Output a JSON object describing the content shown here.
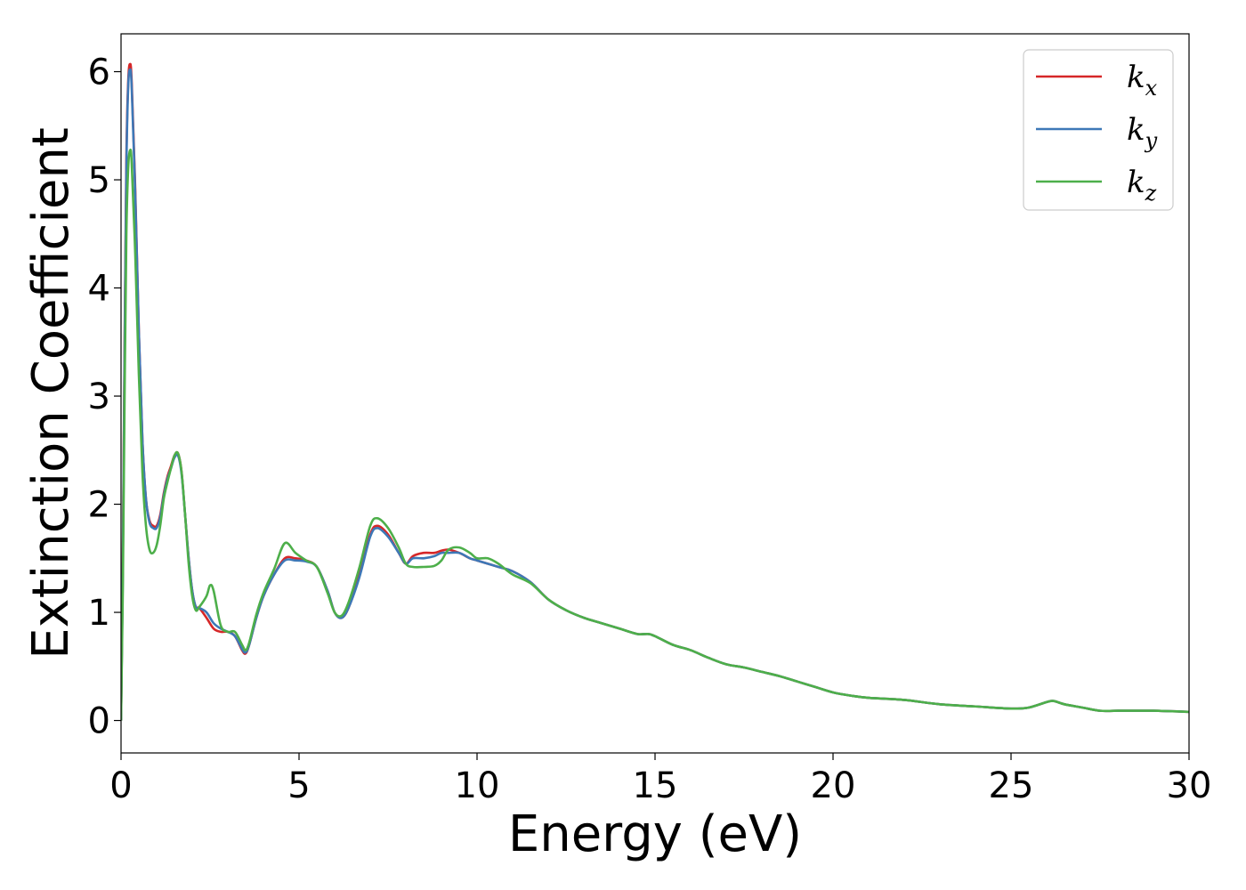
{
  "chart_data": {
    "type": "line",
    "xlabel": "Energy (eV)",
    "ylabel": "Extinction Coefficient",
    "xlim": [
      0,
      30
    ],
    "ylim": [
      -0.3,
      6.35
    ],
    "x_ticks": [
      "0",
      "5",
      "10",
      "15",
      "20",
      "25",
      "30"
    ],
    "y_ticks": [
      "0",
      "1",
      "2",
      "3",
      "4",
      "5",
      "6"
    ],
    "grid": false,
    "legend_placement": "top-right",
    "series": [
      {
        "name": "k_x",
        "legend_main": "k",
        "legend_sub": "x",
        "color": "#d62728",
        "x": [
          0,
          0.05,
          0.1,
          0.15,
          0.2,
          0.25,
          0.3,
          0.4,
          0.5,
          0.6,
          0.7,
          0.8,
          0.9,
          1.0,
          1.1,
          1.2,
          1.3,
          1.4,
          1.5,
          1.6,
          1.7,
          1.8,
          1.9,
          2.0,
          2.1,
          2.2,
          2.4,
          2.6,
          2.8,
          3.0,
          3.2,
          3.4,
          3.5,
          3.6,
          3.8,
          4.0,
          4.3,
          4.6,
          4.9,
          5.2,
          5.5,
          5.8,
          6.0,
          6.2,
          6.4,
          6.7,
          7.0,
          7.2,
          7.5,
          7.8,
          8.0,
          8.2,
          8.5,
          8.8,
          9.0,
          9.2,
          9.5,
          9.8,
          10.0,
          10.3,
          10.6,
          11.0,
          11.5,
          12.0,
          12.5,
          13.0,
          13.5,
          14.0,
          14.5,
          14.8,
          15.0,
          15.5,
          16.0,
          16.5,
          17.0,
          17.5,
          18.0,
          18.5,
          19.0,
          19.5,
          20.0,
          20.5,
          21.0,
          22.0,
          23.0,
          24.0,
          25.0,
          25.5,
          26.0,
          26.2,
          26.5,
          27.0,
          27.5,
          28.0,
          29.0,
          30.0
        ],
        "y": [
          0.0,
          1.5,
          3.5,
          5.2,
          5.9,
          6.07,
          5.9,
          4.9,
          3.6,
          2.6,
          2.05,
          1.85,
          1.8,
          1.8,
          1.9,
          2.1,
          2.25,
          2.35,
          2.45,
          2.47,
          2.3,
          1.9,
          1.5,
          1.2,
          1.05,
          1.04,
          0.95,
          0.85,
          0.82,
          0.82,
          0.78,
          0.65,
          0.62,
          0.7,
          0.95,
          1.15,
          1.35,
          1.5,
          1.5,
          1.48,
          1.42,
          1.2,
          1.0,
          0.95,
          1.05,
          1.35,
          1.72,
          1.8,
          1.72,
          1.55,
          1.45,
          1.52,
          1.55,
          1.55,
          1.57,
          1.58,
          1.55,
          1.5,
          1.48,
          1.45,
          1.42,
          1.38,
          1.28,
          1.12,
          1.02,
          0.95,
          0.9,
          0.85,
          0.8,
          0.8,
          0.78,
          0.7,
          0.65,
          0.58,
          0.52,
          0.49,
          0.45,
          0.41,
          0.36,
          0.31,
          0.26,
          0.23,
          0.21,
          0.19,
          0.15,
          0.13,
          0.11,
          0.12,
          0.17,
          0.18,
          0.15,
          0.12,
          0.09,
          0.09,
          0.09,
          0.08
        ]
      },
      {
        "name": "k_y",
        "legend_main": "k",
        "legend_sub": "y",
        "color": "#3d78b7",
        "x": [
          0,
          0.05,
          0.1,
          0.15,
          0.2,
          0.25,
          0.3,
          0.4,
          0.5,
          0.6,
          0.7,
          0.8,
          0.9,
          1.0,
          1.1,
          1.2,
          1.3,
          1.4,
          1.5,
          1.6,
          1.7,
          1.8,
          1.9,
          2.0,
          2.1,
          2.2,
          2.4,
          2.6,
          2.8,
          3.0,
          3.2,
          3.4,
          3.5,
          3.6,
          3.8,
          4.0,
          4.3,
          4.6,
          4.9,
          5.2,
          5.5,
          5.8,
          6.0,
          6.2,
          6.4,
          6.7,
          7.0,
          7.2,
          7.5,
          7.8,
          8.0,
          8.2,
          8.5,
          8.8,
          9.0,
          9.2,
          9.5,
          9.8,
          10.0,
          10.3,
          10.6,
          11.0,
          11.5,
          12.0,
          12.5,
          13.0,
          13.5,
          14.0,
          14.5,
          14.8,
          15.0,
          15.5,
          16.0,
          16.5,
          17.0,
          17.5,
          18.0,
          18.5,
          19.0,
          19.5,
          20.0,
          20.5,
          21.0,
          22.0,
          23.0,
          24.0,
          25.0,
          25.5,
          26.0,
          26.2,
          26.5,
          27.0,
          27.5,
          28.0,
          29.0,
          30.0
        ],
        "y": [
          0.0,
          1.4,
          3.4,
          5.1,
          5.85,
          6.02,
          5.85,
          4.85,
          3.6,
          2.6,
          2.05,
          1.83,
          1.78,
          1.78,
          1.88,
          2.08,
          2.23,
          2.33,
          2.43,
          2.45,
          2.28,
          1.9,
          1.5,
          1.2,
          1.05,
          1.04,
          1.0,
          0.9,
          0.85,
          0.82,
          0.78,
          0.66,
          0.63,
          0.7,
          0.95,
          1.15,
          1.35,
          1.48,
          1.48,
          1.47,
          1.42,
          1.2,
          1.0,
          0.95,
          1.05,
          1.33,
          1.7,
          1.78,
          1.7,
          1.55,
          1.45,
          1.5,
          1.5,
          1.52,
          1.55,
          1.55,
          1.55,
          1.5,
          1.48,
          1.45,
          1.42,
          1.38,
          1.28,
          1.12,
          1.02,
          0.95,
          0.9,
          0.85,
          0.8,
          0.8,
          0.78,
          0.7,
          0.65,
          0.58,
          0.52,
          0.49,
          0.45,
          0.41,
          0.36,
          0.31,
          0.26,
          0.23,
          0.21,
          0.19,
          0.15,
          0.13,
          0.11,
          0.12,
          0.17,
          0.18,
          0.15,
          0.12,
          0.09,
          0.09,
          0.09,
          0.08
        ]
      },
      {
        "name": "k_z",
        "legend_main": "k",
        "legend_sub": "z",
        "color": "#4daf4a",
        "x": [
          0,
          0.05,
          0.1,
          0.15,
          0.2,
          0.25,
          0.3,
          0.4,
          0.5,
          0.6,
          0.7,
          0.8,
          0.9,
          1.0,
          1.1,
          1.2,
          1.3,
          1.4,
          1.5,
          1.6,
          1.7,
          1.8,
          1.9,
          2.0,
          2.1,
          2.2,
          2.4,
          2.5,
          2.6,
          2.8,
          3.0,
          3.2,
          3.4,
          3.5,
          3.6,
          3.8,
          4.0,
          4.3,
          4.6,
          4.9,
          5.2,
          5.5,
          5.8,
          6.0,
          6.2,
          6.4,
          6.7,
          7.0,
          7.2,
          7.5,
          7.8,
          8.0,
          8.2,
          8.5,
          8.8,
          9.0,
          9.2,
          9.5,
          9.8,
          10.0,
          10.3,
          10.6,
          11.0,
          11.5,
          12.0,
          12.5,
          13.0,
          13.5,
          14.0,
          14.5,
          14.8,
          15.0,
          15.5,
          16.0,
          16.5,
          17.0,
          17.5,
          18.0,
          18.5,
          19.0,
          19.5,
          20.0,
          20.5,
          21.0,
          22.0,
          23.0,
          24.0,
          25.0,
          25.5,
          26.0,
          26.2,
          26.5,
          27.0,
          27.5,
          28.0,
          29.0,
          30.0
        ],
        "y": [
          0.0,
          1.2,
          3.0,
          4.5,
          5.1,
          5.27,
          5.15,
          4.3,
          3.2,
          2.3,
          1.8,
          1.58,
          1.55,
          1.62,
          1.8,
          2.05,
          2.2,
          2.33,
          2.45,
          2.47,
          2.3,
          1.9,
          1.45,
          1.15,
          1.02,
          1.05,
          1.15,
          1.25,
          1.2,
          0.88,
          0.82,
          0.82,
          0.7,
          0.65,
          0.72,
          0.98,
          1.18,
          1.4,
          1.64,
          1.55,
          1.48,
          1.42,
          1.18,
          1.0,
          0.97,
          1.1,
          1.42,
          1.8,
          1.87,
          1.78,
          1.6,
          1.45,
          1.42,
          1.42,
          1.43,
          1.48,
          1.58,
          1.6,
          1.55,
          1.5,
          1.5,
          1.45,
          1.35,
          1.27,
          1.12,
          1.02,
          0.95,
          0.9,
          0.85,
          0.8,
          0.8,
          0.78,
          0.7,
          0.65,
          0.58,
          0.52,
          0.49,
          0.45,
          0.41,
          0.36,
          0.31,
          0.26,
          0.23,
          0.21,
          0.19,
          0.15,
          0.13,
          0.11,
          0.12,
          0.17,
          0.18,
          0.15,
          0.12,
          0.09,
          0.09,
          0.09,
          0.08
        ]
      }
    ]
  }
}
